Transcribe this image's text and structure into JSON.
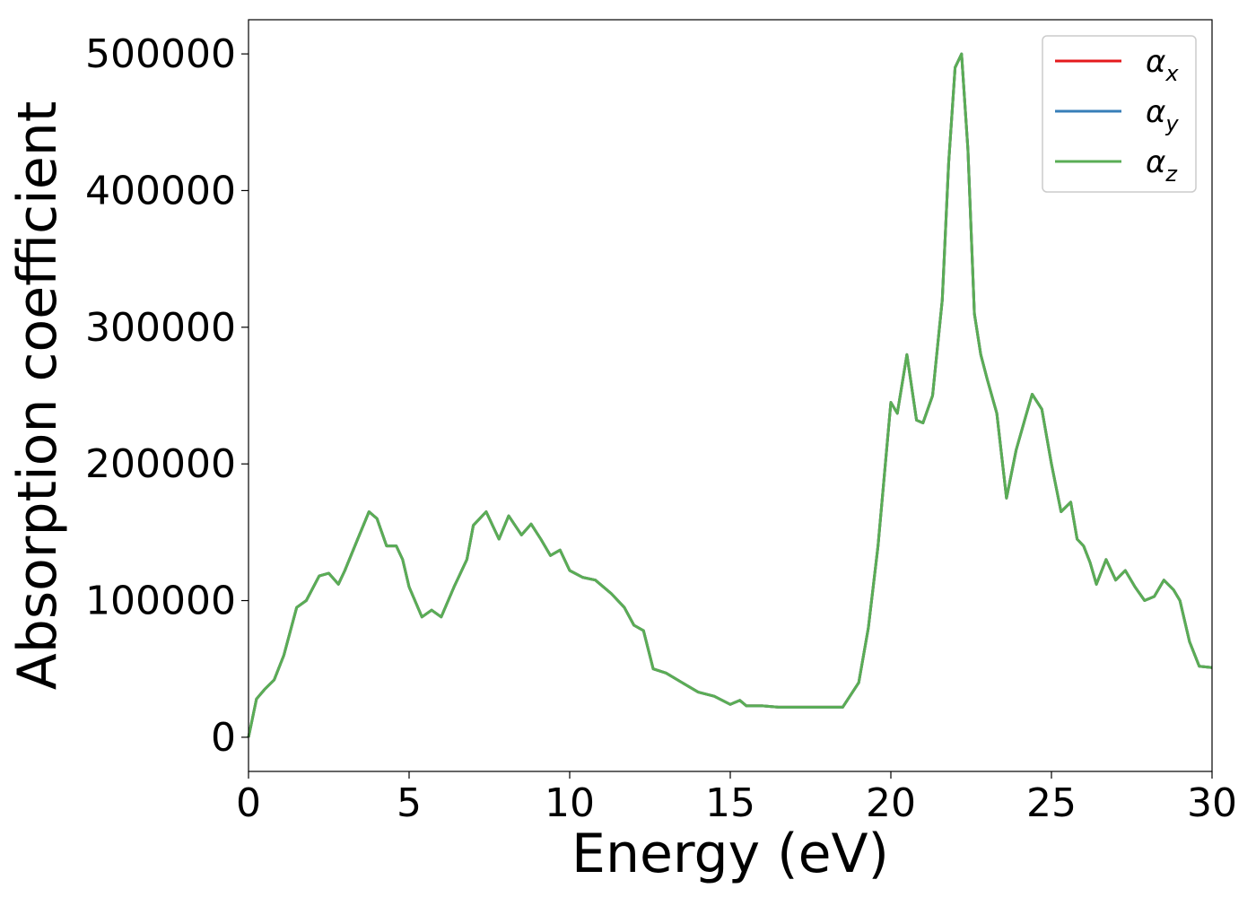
{
  "chart_data": {
    "type": "line",
    "title": "",
    "xlabel": "Energy (eV)",
    "ylabel": "Absorption coefficient",
    "xlim": [
      0,
      30
    ],
    "ylim": [
      -25000,
      525000
    ],
    "xticks": [
      0,
      5,
      10,
      15,
      20,
      25,
      30
    ],
    "xtick_labels": [
      "0",
      "5",
      "10",
      "15",
      "20",
      "25",
      "30"
    ],
    "yticks": [
      0,
      100000,
      200000,
      300000,
      400000,
      500000
    ],
    "ytick_labels": [
      "0",
      "100000",
      "200000",
      "300000",
      "400000",
      "500000"
    ],
    "grid": false,
    "legend_position": "top-right",
    "series": [
      {
        "name": "α_x",
        "name_base": "α",
        "name_sub": "x",
        "color": "#e41a1c",
        "x": [
          0,
          0.25,
          0.5,
          0.8,
          1.1,
          1.5,
          1.8,
          2.2,
          2.5,
          2.8,
          3.0,
          3.4,
          3.75,
          4.0,
          4.3,
          4.6,
          4.8,
          5.0,
          5.4,
          5.7,
          6.0,
          6.4,
          6.8,
          7.0,
          7.4,
          7.8,
          8.1,
          8.5,
          8.8,
          9.1,
          9.4,
          9.7,
          10.0,
          10.4,
          10.8,
          11.3,
          11.7,
          12.0,
          12.3,
          12.6,
          13.0,
          13.5,
          14.0,
          14.5,
          15.0,
          15.3,
          15.5,
          16.0,
          16.5,
          17.0,
          17.5,
          18.0,
          18.5,
          19.0,
          19.3,
          19.6,
          20.0,
          20.2,
          20.5,
          20.8,
          21.0,
          21.3,
          21.6,
          21.8,
          22.0,
          22.2,
          22.4,
          22.6,
          22.8,
          23.0,
          23.3,
          23.6,
          23.9,
          24.2,
          24.4,
          24.7,
          25.0,
          25.3,
          25.6,
          25.8,
          26.0,
          26.2,
          26.4,
          26.7,
          27.0,
          27.3,
          27.6,
          27.9,
          28.2,
          28.5,
          28.8,
          29.0,
          29.3,
          29.6,
          30.0
        ],
        "y": [
          0,
          28000,
          35000,
          42000,
          60000,
          95000,
          100000,
          118000,
          120000,
          112000,
          122000,
          145000,
          165000,
          160000,
          140000,
          140000,
          130000,
          110000,
          88000,
          93000,
          88000,
          110000,
          130000,
          155000,
          165000,
          145000,
          162000,
          148000,
          156000,
          145000,
          133000,
          137000,
          122000,
          117000,
          115000,
          105000,
          95000,
          82000,
          78000,
          50000,
          47000,
          40000,
          33000,
          30000,
          24000,
          27000,
          23000,
          23000,
          22000,
          22000,
          22000,
          22000,
          22000,
          40000,
          80000,
          140000,
          245000,
          237000,
          280000,
          232000,
          230000,
          250000,
          320000,
          420000,
          490000,
          500000,
          430000,
          310000,
          280000,
          262000,
          237000,
          175000,
          210000,
          235000,
          251000,
          240000,
          200000,
          165000,
          172000,
          145000,
          140000,
          128000,
          112000,
          130000,
          115000,
          122000,
          110000,
          100000,
          103000,
          115000,
          108000,
          100000,
          70000,
          52000,
          51000
        ]
      },
      {
        "name": "α_y",
        "name_base": "α",
        "name_sub": "y",
        "color": "#377eb8",
        "x": [
          0,
          0.25,
          0.5,
          0.8,
          1.1,
          1.5,
          1.8,
          2.2,
          2.5,
          2.8,
          3.0,
          3.4,
          3.75,
          4.0,
          4.3,
          4.6,
          4.8,
          5.0,
          5.4,
          5.7,
          6.0,
          6.4,
          6.8,
          7.0,
          7.4,
          7.8,
          8.1,
          8.5,
          8.8,
          9.1,
          9.4,
          9.7,
          10.0,
          10.4,
          10.8,
          11.3,
          11.7,
          12.0,
          12.3,
          12.6,
          13.0,
          13.5,
          14.0,
          14.5,
          15.0,
          15.3,
          15.5,
          16.0,
          16.5,
          17.0,
          17.5,
          18.0,
          18.5,
          19.0,
          19.3,
          19.6,
          20.0,
          20.2,
          20.5,
          20.8,
          21.0,
          21.3,
          21.6,
          21.8,
          22.0,
          22.2,
          22.4,
          22.6,
          22.8,
          23.0,
          23.3,
          23.6,
          23.9,
          24.2,
          24.4,
          24.7,
          25.0,
          25.3,
          25.6,
          25.8,
          26.0,
          26.2,
          26.4,
          26.7,
          27.0,
          27.3,
          27.6,
          27.9,
          28.2,
          28.5,
          28.8,
          29.0,
          29.3,
          29.6,
          30.0
        ],
        "y": [
          0,
          28000,
          35000,
          42000,
          60000,
          95000,
          100000,
          118000,
          120000,
          112000,
          122000,
          145000,
          165000,
          160000,
          140000,
          140000,
          130000,
          110000,
          88000,
          93000,
          88000,
          110000,
          130000,
          155000,
          165000,
          145000,
          162000,
          148000,
          156000,
          145000,
          133000,
          137000,
          122000,
          117000,
          115000,
          105000,
          95000,
          82000,
          78000,
          50000,
          47000,
          40000,
          33000,
          30000,
          24000,
          27000,
          23000,
          23000,
          22000,
          22000,
          22000,
          22000,
          22000,
          40000,
          80000,
          140000,
          245000,
          237000,
          280000,
          232000,
          230000,
          250000,
          320000,
          420000,
          490000,
          500000,
          430000,
          310000,
          280000,
          262000,
          237000,
          175000,
          210000,
          235000,
          251000,
          240000,
          200000,
          165000,
          172000,
          145000,
          140000,
          128000,
          112000,
          130000,
          115000,
          122000,
          110000,
          100000,
          103000,
          115000,
          108000,
          100000,
          70000,
          52000,
          51000
        ]
      },
      {
        "name": "α_z",
        "name_base": "α",
        "name_sub": "z",
        "color": "#5aad55",
        "x": [
          0,
          0.25,
          0.5,
          0.8,
          1.1,
          1.5,
          1.8,
          2.2,
          2.5,
          2.8,
          3.0,
          3.4,
          3.75,
          4.0,
          4.3,
          4.6,
          4.8,
          5.0,
          5.4,
          5.7,
          6.0,
          6.4,
          6.8,
          7.0,
          7.4,
          7.8,
          8.1,
          8.5,
          8.8,
          9.1,
          9.4,
          9.7,
          10.0,
          10.4,
          10.8,
          11.3,
          11.7,
          12.0,
          12.3,
          12.6,
          13.0,
          13.5,
          14.0,
          14.5,
          15.0,
          15.3,
          15.5,
          16.0,
          16.5,
          17.0,
          17.5,
          18.0,
          18.5,
          19.0,
          19.3,
          19.6,
          20.0,
          20.2,
          20.5,
          20.8,
          21.0,
          21.3,
          21.6,
          21.8,
          22.0,
          22.2,
          22.4,
          22.6,
          22.8,
          23.0,
          23.3,
          23.6,
          23.9,
          24.2,
          24.4,
          24.7,
          25.0,
          25.3,
          25.6,
          25.8,
          26.0,
          26.2,
          26.4,
          26.7,
          27.0,
          27.3,
          27.6,
          27.9,
          28.2,
          28.5,
          28.8,
          29.0,
          29.3,
          29.6,
          30.0
        ],
        "y": [
          0,
          28000,
          35000,
          42000,
          60000,
          95000,
          100000,
          118000,
          120000,
          112000,
          122000,
          145000,
          165000,
          160000,
          140000,
          140000,
          130000,
          110000,
          88000,
          93000,
          88000,
          110000,
          130000,
          155000,
          165000,
          145000,
          162000,
          148000,
          156000,
          145000,
          133000,
          137000,
          122000,
          117000,
          115000,
          105000,
          95000,
          82000,
          78000,
          50000,
          47000,
          40000,
          33000,
          30000,
          24000,
          27000,
          23000,
          23000,
          22000,
          22000,
          22000,
          22000,
          22000,
          40000,
          80000,
          140000,
          245000,
          237000,
          280000,
          232000,
          230000,
          250000,
          320000,
          420000,
          490000,
          500000,
          430000,
          310000,
          280000,
          262000,
          237000,
          175000,
          210000,
          235000,
          251000,
          240000,
          200000,
          165000,
          172000,
          145000,
          140000,
          128000,
          112000,
          130000,
          115000,
          122000,
          110000,
          100000,
          103000,
          115000,
          108000,
          100000,
          70000,
          52000,
          51000
        ]
      }
    ]
  }
}
